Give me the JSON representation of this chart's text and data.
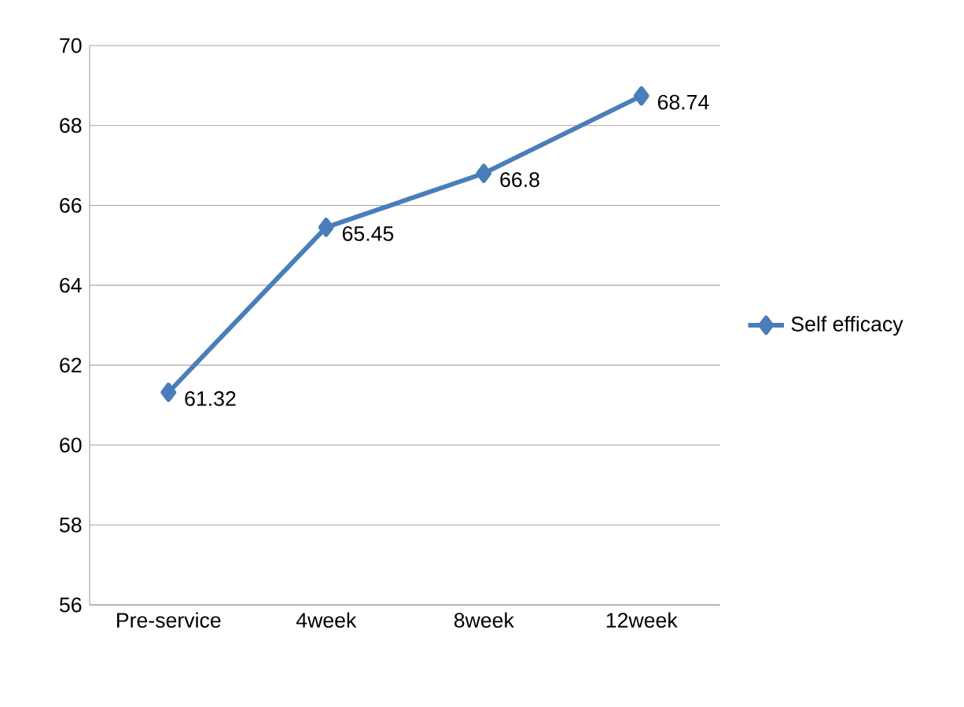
{
  "chart_data": {
    "type": "line",
    "categories": [
      "Pre-service",
      "4week",
      "8week",
      "12week"
    ],
    "series": [
      {
        "name": "Self efficacy",
        "color": "#4a7ebb",
        "values": [
          61.32,
          65.45,
          66.8,
          68.74
        ]
      }
    ],
    "ylim": [
      56,
      70
    ],
    "yticks": [
      56,
      58,
      60,
      62,
      64,
      66,
      68,
      70
    ],
    "grid": "y",
    "legend": "right",
    "marker": "diamond",
    "line_style": "solid",
    "data_labels": true
  }
}
